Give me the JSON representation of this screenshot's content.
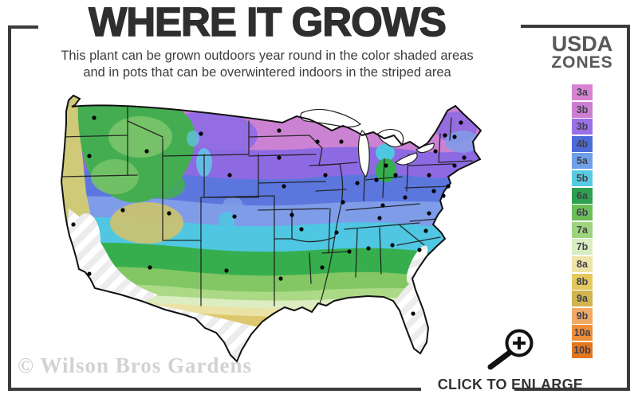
{
  "header": {
    "title": "WHERE IT GROWS",
    "subtitle_line1": "This plant can be grown outdoors year round in the color shaded areas",
    "subtitle_line2": "and in pots that can be overwintered indoors in the striped area"
  },
  "legend": {
    "title_line1": "USDA",
    "title_line2": "ZONES",
    "zones": [
      {
        "label": "3a",
        "color": "#d783d1"
      },
      {
        "label": "3b",
        "color": "#cc7fd0"
      },
      {
        "label": "3b",
        "color": "#9b6fe8"
      },
      {
        "label": "4b",
        "color": "#4d6bd8"
      },
      {
        "label": "5a",
        "color": "#6f9fe8"
      },
      {
        "label": "5b",
        "color": "#58cbe0"
      },
      {
        "label": "6a",
        "color": "#2ea050"
      },
      {
        "label": "6b",
        "color": "#6cbd58"
      },
      {
        "label": "7a",
        "color": "#9ed47d"
      },
      {
        "label": "7b",
        "color": "#d9edc3"
      },
      {
        "label": "8a",
        "color": "#efe3a8"
      },
      {
        "label": "8b",
        "color": "#e3c95d"
      },
      {
        "label": "9a",
        "color": "#d1b44e"
      },
      {
        "label": "9b",
        "color": "#f0aa63"
      },
      {
        "label": "10a",
        "color": "#ee8e38"
      },
      {
        "label": "10b",
        "color": "#e2761f"
      }
    ]
  },
  "map": {
    "description": "USDA plant hardiness zone map of the contiguous United States with city marker dots, colored zone shading and striped overwinter-indoors areas"
  },
  "footer": {
    "watermark": "© Wilson Bros Gardens",
    "enlarge_label": "CLICK TO ENLARGE"
  }
}
